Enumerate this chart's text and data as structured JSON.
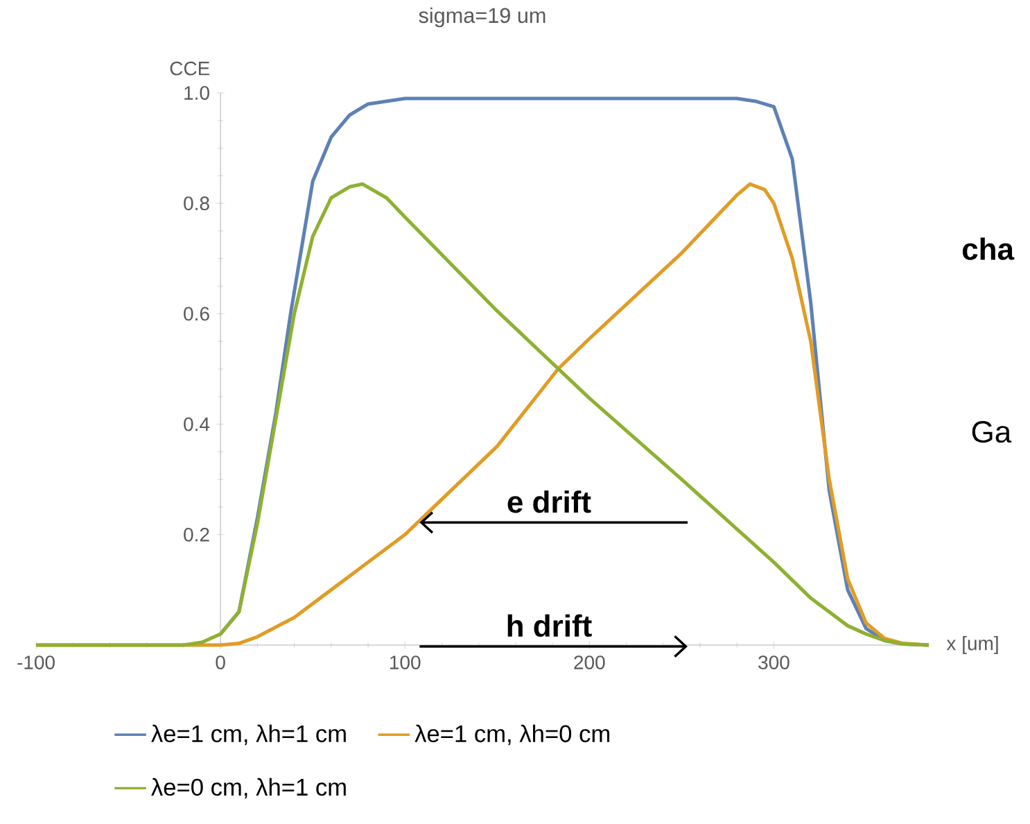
{
  "chart_data": {
    "type": "line",
    "title": "sigma=19 um",
    "xlabel": "x [um]",
    "ylabel": "CCE",
    "xlim": [
      -100,
      384
    ],
    "ylim": [
      0,
      1.0
    ],
    "xticks": [
      -100,
      0,
      100,
      200,
      300
    ],
    "yticks": [
      0.2,
      0.4,
      0.6,
      0.8,
      {
        "value": 1.0,
        "label": "1.0"
      }
    ],
    "legend": "bottom",
    "grid": false,
    "marker": "none",
    "line_style": "solid",
    "series": [
      {
        "name": "λe=1 cm, λh=1 cm",
        "color": "#5e81b5",
        "x": [
          0,
          10,
          20,
          30,
          38,
          50,
          60,
          70,
          80,
          100,
          200,
          280,
          290,
          300,
          310,
          320,
          330,
          340,
          350,
          360,
          370,
          384
        ],
        "values": [
          0.02,
          0.06,
          0.23,
          0.42,
          0.6,
          0.84,
          0.92,
          0.96,
          0.98,
          0.99,
          0.99,
          0.99,
          0.985,
          0.975,
          0.88,
          0.62,
          0.28,
          0.1,
          0.03,
          0.008,
          0.002,
          0
        ]
      },
      {
        "name": "λe=1 cm, λh=0 cm",
        "color": "#e19c24",
        "x": [
          -100,
          0,
          10,
          20,
          40,
          60,
          76,
          100,
          150,
          183,
          200,
          250,
          270,
          280,
          287,
          295,
          300,
          310,
          320,
          330,
          340,
          350,
          360,
          370,
          384
        ],
        "values": [
          0,
          0,
          0.003,
          0.015,
          0.05,
          0.1,
          0.14,
          0.2,
          0.36,
          0.5,
          0.555,
          0.71,
          0.78,
          0.815,
          0.835,
          0.825,
          0.8,
          0.7,
          0.55,
          0.3,
          0.12,
          0.04,
          0.012,
          0.003,
          0
        ]
      },
      {
        "name": "λe=0 cm, λh=1 cm",
        "color": "#8fb032",
        "x": [
          -100,
          -20,
          -10,
          0,
          10,
          20,
          30,
          40,
          50,
          60,
          70,
          77,
          90,
          100,
          150,
          200,
          250,
          280,
          300,
          320,
          340,
          350,
          360,
          370,
          384
        ],
        "values": [
          0,
          0,
          0.005,
          0.02,
          0.06,
          0.22,
          0.41,
          0.6,
          0.74,
          0.81,
          0.83,
          0.835,
          0.81,
          0.775,
          0.605,
          0.447,
          0.3,
          0.21,
          0.15,
          0.085,
          0.035,
          0.02,
          0.008,
          0.002,
          0
        ]
      }
    ],
    "annotations": [
      "e drift",
      "h drift",
      "cha",
      "Ga"
    ]
  }
}
